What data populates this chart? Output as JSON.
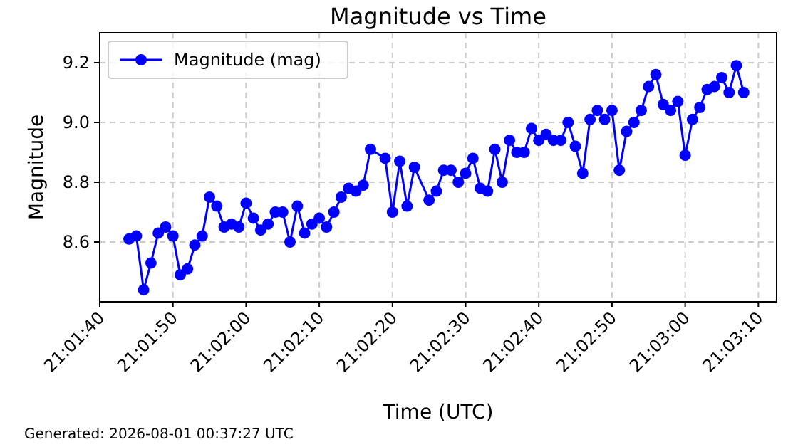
{
  "chart_data": {
    "type": "line",
    "title": "Magnitude vs Time",
    "xlabel": "Time (UTC)",
    "ylabel": "Magnitude",
    "annotations": [
      "Generated: 2026-08-01 00:37:27 UTC"
    ],
    "x": [
      21.028889,
      21.029167,
      21.029444,
      21.029722,
      21.03,
      21.030278,
      21.030556,
      21.030833,
      21.031111,
      21.031389,
      21.031667,
      21.031944,
      21.032222,
      21.0325,
      21.032778,
      21.033056,
      21.033333,
      21.033611,
      21.033889,
      21.034167,
      21.034444,
      21.034722,
      21.035,
      21.035278,
      21.035556,
      21.035833,
      21.036111,
      21.036389,
      21.036667,
      21.036944,
      21.037222,
      21.0375,
      21.037778,
      21.038056,
      21.038611,
      21.038889,
      21.039167,
      21.039444,
      21.039722,
      21.040278,
      21.040556,
      21.040833,
      21.041111,
      21.041389,
      21.041667,
      21.041944,
      21.042222,
      21.0425,
      21.042778,
      21.043056,
      21.043333,
      21.043611,
      21.043889,
      21.044167,
      21.044444,
      21.044722,
      21.045,
      21.045278,
      21.045556,
      21.045833,
      21.046111,
      21.046389,
      21.046667,
      21.046944,
      21.047222,
      21.0475,
      21.047778,
      21.048056,
      21.048333,
      21.048611,
      21.048889,
      21.049167,
      21.049444,
      21.049722,
      21.05,
      21.050278,
      21.050556,
      21.050833,
      21.051111,
      21.051389,
      21.051667,
      21.051944,
      21.052222
    ],
    "series": [
      {
        "name": "Magnitude (mag)",
        "color": "#0000ff",
        "values": [
          8.61,
          8.62,
          8.44,
          8.53,
          8.63,
          8.65,
          8.62,
          8.49,
          8.51,
          8.59,
          8.62,
          8.75,
          8.72,
          8.65,
          8.66,
          8.65,
          8.73,
          8.68,
          8.64,
          8.66,
          8.7,
          8.7,
          8.6,
          8.72,
          8.63,
          8.66,
          8.68,
          8.65,
          8.7,
          8.75,
          8.78,
          8.77,
          8.79,
          8.91,
          8.88,
          8.7,
          8.87,
          8.72,
          8.85,
          8.74,
          8.77,
          8.84,
          8.84,
          8.8,
          8.83,
          8.88,
          8.78,
          8.77,
          8.91,
          8.8,
          8.94,
          8.9,
          8.9,
          8.98,
          8.94,
          8.96,
          8.94,
          8.94,
          9.0,
          8.92,
          8.83,
          9.01,
          9.04,
          9.01,
          9.04,
          8.84,
          8.97,
          9.0,
          9.04,
          9.12,
          9.16,
          9.06,
          9.04,
          9.07,
          8.89,
          9.01,
          9.05,
          9.11,
          9.12,
          9.15,
          9.1,
          9.19,
          9.1
        ]
      }
    ],
    "xlim": [
      21.027778,
      21.053472
    ],
    "xticks": [
      {
        "value": 21.027778,
        "label": "21:01:40"
      },
      {
        "value": 21.030556,
        "label": "21:01:50"
      },
      {
        "value": 21.033333,
        "label": "21:02:00"
      },
      {
        "value": 21.036111,
        "label": "21:02:10"
      },
      {
        "value": 21.038889,
        "label": "21:02:20"
      },
      {
        "value": 21.041667,
        "label": "21:02:30"
      },
      {
        "value": 21.044444,
        "label": "21:02:40"
      },
      {
        "value": 21.047222,
        "label": "21:02:50"
      },
      {
        "value": 21.05,
        "label": "21:03:00"
      },
      {
        "value": 21.052778,
        "label": "21:03:10"
      }
    ],
    "ylim": [
      8.4,
      9.3
    ],
    "yticks": [
      8.6,
      8.8,
      {
        "value": 9,
        "label": "9.0"
      },
      9.2
    ],
    "grid": true,
    "legend": "top left",
    "marker": "circle",
    "line_style": "solid"
  }
}
